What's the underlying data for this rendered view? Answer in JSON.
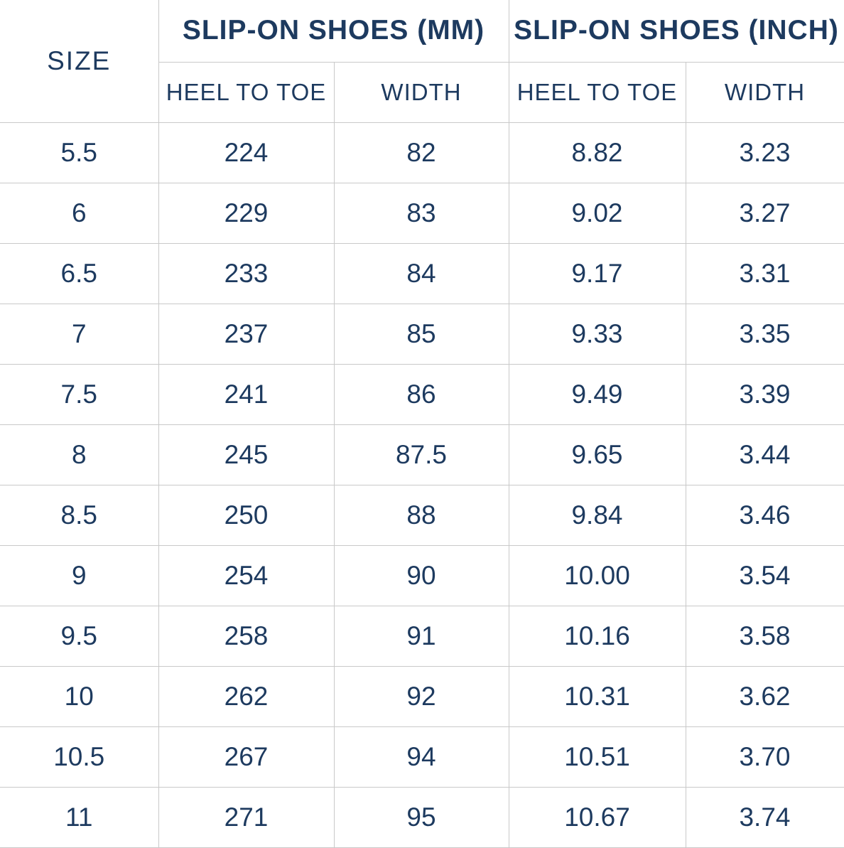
{
  "table": {
    "header": {
      "size_label": "SIZE",
      "group_mm": "SLIP-ON SHOES (MM)",
      "group_inch": "SLIP-ON SHOES (INCH)",
      "mm_heel_label": "HEEL TO TOE",
      "mm_width_label": "WIDTH",
      "inch_heel_label": "HEEL TO TOE",
      "inch_width_label": "WIDTH"
    },
    "rows": [
      {
        "size": "5.5",
        "mm_heel": "224",
        "mm_width": "82",
        "inch_heel": "8.82",
        "inch_width": "3.23"
      },
      {
        "size": "6",
        "mm_heel": "229",
        "mm_width": "83",
        "inch_heel": "9.02",
        "inch_width": "3.27"
      },
      {
        "size": "6.5",
        "mm_heel": "233",
        "mm_width": "84",
        "inch_heel": "9.17",
        "inch_width": "3.31"
      },
      {
        "size": "7",
        "mm_heel": "237",
        "mm_width": "85",
        "inch_heel": "9.33",
        "inch_width": "3.35"
      },
      {
        "size": "7.5",
        "mm_heel": "241",
        "mm_width": "86",
        "inch_heel": "9.49",
        "inch_width": "3.39"
      },
      {
        "size": "8",
        "mm_heel": "245",
        "mm_width": "87.5",
        "inch_heel": "9.65",
        "inch_width": "3.44"
      },
      {
        "size": "8.5",
        "mm_heel": "250",
        "mm_width": "88",
        "inch_heel": "9.84",
        "inch_width": "3.46"
      },
      {
        "size": "9",
        "mm_heel": "254",
        "mm_width": "90",
        "inch_heel": "10.00",
        "inch_width": "3.54"
      },
      {
        "size": "9.5",
        "mm_heel": "258",
        "mm_width": "91",
        "inch_heel": "10.16",
        "inch_width": "3.58"
      },
      {
        "size": "10",
        "mm_heel": "262",
        "mm_width": "92",
        "inch_heel": "10.31",
        "inch_width": "3.62"
      },
      {
        "size": "10.5",
        "mm_heel": "267",
        "mm_width": "94",
        "inch_heel": "10.51",
        "inch_width": "3.70"
      },
      {
        "size": "11",
        "mm_heel": "271",
        "mm_width": "95",
        "inch_heel": "10.67",
        "inch_width": "3.74"
      }
    ]
  },
  "colors": {
    "text": "#1d3a5f",
    "border": "#c9c9c9",
    "background": "#ffffff"
  }
}
